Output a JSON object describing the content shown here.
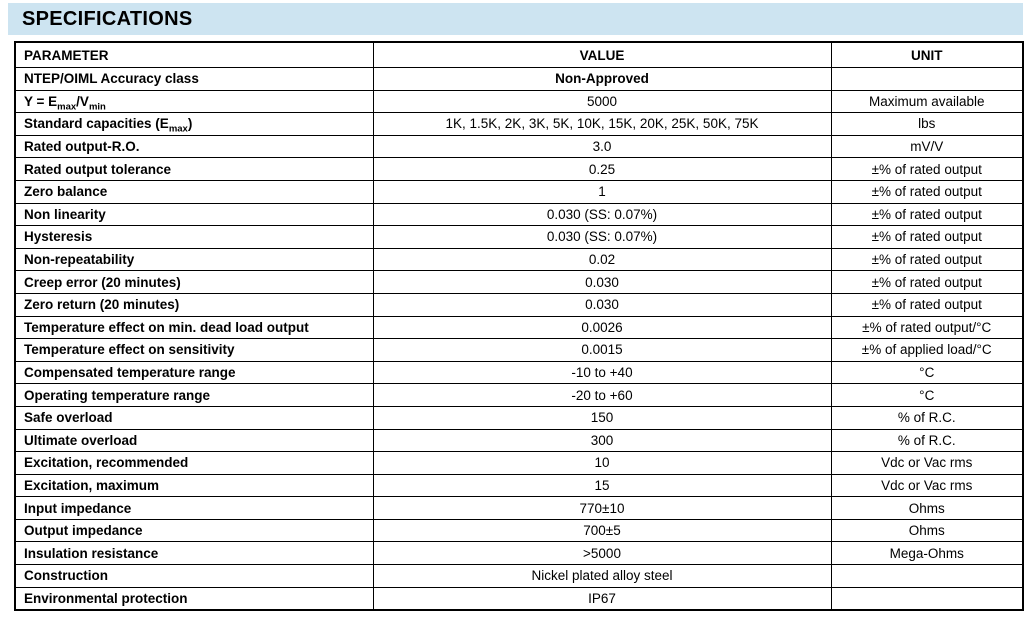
{
  "header": {
    "title": "SPECIFICATIONS"
  },
  "colors": {
    "banner_bg": "#cde4f1",
    "border": "#000000",
    "text": "#000000",
    "page_bg": "#ffffff"
  },
  "table": {
    "columns": [
      "PARAMETER",
      "VALUE",
      "UNIT"
    ],
    "rows": [
      {
        "parameter": "NTEP/OIML Accuracy class",
        "value": "Non-Approved",
        "unit": "",
        "value_bold": true
      },
      {
        "parameter": "Y = Emax/Vmin",
        "parameter_parts": [
          {
            "text": "Y = E"
          },
          {
            "text": "max",
            "sub": true
          },
          {
            "text": "/V"
          },
          {
            "text": "min",
            "sub": true
          }
        ],
        "value": "5000",
        "unit": "Maximum available"
      },
      {
        "parameter": "Standard capacities (Emax)",
        "parameter_parts": [
          {
            "text": "Standard capacities (E"
          },
          {
            "text": "max",
            "sub": true
          },
          {
            "text": ")"
          }
        ],
        "value": "1K, 1.5K, 2K, 3K, 5K, 10K, 15K, 20K, 25K, 50K, 75K",
        "unit": "lbs"
      },
      {
        "parameter": "Rated output-R.O.",
        "value": "3.0",
        "unit": "mV/V"
      },
      {
        "parameter": "Rated output tolerance",
        "value": "0.25",
        "unit": "±% of rated output"
      },
      {
        "parameter": "Zero balance",
        "value": "1",
        "unit": "±% of rated output"
      },
      {
        "parameter": "Non linearity",
        "value": "0.030 (SS: 0.07%)",
        "unit": "±% of rated output"
      },
      {
        "parameter": "Hysteresis",
        "value": "0.030 (SS: 0.07%)",
        "unit": "±% of rated output"
      },
      {
        "parameter": "Non-repeatability",
        "value": "0.02",
        "unit": "±% of rated output"
      },
      {
        "parameter": "Creep error (20 minutes)",
        "value": "0.030",
        "unit": "±% of rated output"
      },
      {
        "parameter": "Zero return (20 minutes)",
        "value": "0.030",
        "unit": "±% of rated output"
      },
      {
        "parameter": "Temperature effect on min. dead load output",
        "value": "0.0026",
        "unit": "±% of rated output/°C"
      },
      {
        "parameter": "Temperature effect on sensitivity",
        "value": "0.0015",
        "unit": "±% of applied load/°C"
      },
      {
        "parameter": "Compensated temperature range",
        "value": "-10 to +40",
        "unit": "°C"
      },
      {
        "parameter": "Operating temperature range",
        "value": "-20 to +60",
        "unit": "°C"
      },
      {
        "parameter": "Safe overload",
        "value": "150",
        "unit": "% of R.C."
      },
      {
        "parameter": "Ultimate overload",
        "value": "300",
        "unit": "% of R.C."
      },
      {
        "parameter": "Excitation, recommended",
        "value": "10",
        "unit": "Vdc or Vac rms"
      },
      {
        "parameter": "Excitation, maximum",
        "value": "15",
        "unit": "Vdc or Vac rms"
      },
      {
        "parameter": "Input impedance",
        "value": "770±10",
        "unit": "Ohms"
      },
      {
        "parameter": "Output impedance",
        "value": "700±5",
        "unit": "Ohms"
      },
      {
        "parameter": "Insulation resistance",
        "value": ">5000",
        "unit": "Mega-Ohms"
      },
      {
        "parameter": "Construction",
        "value": "Nickel plated alloy steel",
        "unit": ""
      },
      {
        "parameter": "Environmental protection",
        "value": "IP67",
        "unit": ""
      }
    ]
  }
}
